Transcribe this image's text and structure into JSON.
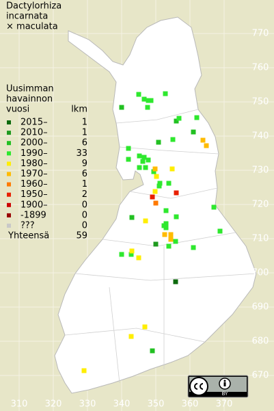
{
  "chart_data": {
    "type": "map",
    "title": [
      "Dactylorhiza",
      "incarnata",
      "× maculata"
    ],
    "legend_title": [
      "Uusimman",
      "havainnon",
      "vuosi"
    ],
    "count_header": "lkm",
    "total_label": "Yhteensä",
    "total": 59,
    "xlim": [
      304.4,
      384.6
    ],
    "ylim": [
      659.6,
      779.8
    ],
    "xticks": [
      310,
      320,
      330,
      340,
      350,
      360,
      370
    ],
    "yticks": [
      670,
      680,
      690,
      700,
      710,
      720,
      730,
      740,
      750,
      760,
      770
    ],
    "grid": true,
    "badge": {
      "by": "BY"
    },
    "series": [
      {
        "name": "2015–",
        "color": "#0d6a0d",
        "count": 1,
        "x": [
          355.8
        ],
        "y": [
          697.4
        ]
      },
      {
        "name": "2010–",
        "color": "#1f9a1f",
        "count": 1,
        "x": [
          350.0
        ],
        "y": [
          708.4
        ]
      },
      {
        "name": "2000–",
        "color": "#22c022",
        "count": 6,
        "x": [
          350.8,
          356.0,
          343.0,
          361.0,
          340.0,
          349.0
        ],
        "y": [
          738.2,
          744.4,
          716.2,
          741.2,
          748.4,
          677.2
        ]
      },
      {
        "name": "1990–",
        "color": "#2ee82e",
        "count": 33,
        "x": [
          345.0,
          352.8,
          346.6,
          347.8,
          348.6,
          347.6,
          356.8,
          362.0,
          355.0,
          342.0,
          345.2,
          346.6,
          342.0,
          346.2,
          347.8,
          345.2,
          347.0,
          349.4,
          351.0,
          353.8,
          367.0,
          353.0,
          356.0,
          353.0,
          353.0,
          368.8,
          355.8,
          361.0,
          340.0,
          342.8,
          353.8,
          352.4,
          351.2
        ],
        "y": [
          752.2,
          752.4,
          750.8,
          750.4,
          750.4,
          748.4,
          745.2,
          745.4,
          739.0,
          736.4,
          734.2,
          733.8,
          733.2,
          732.6,
          733.0,
          730.8,
          730.8,
          729.6,
          725.4,
          726.2,
          719.2,
          718.2,
          716.4,
          714.4,
          713.2,
          712.2,
          709.2,
          707.4,
          705.4,
          705.4,
          707.8,
          713.8,
          726.2
        ]
      },
      {
        "name": "1980–",
        "color": "#ffee00",
        "count": 9,
        "x": [
          354.8,
          350.2,
          349.8,
          347.0,
          343.0,
          345.0,
          342.8,
          346.8,
          329.0
        ],
        "y": [
          730.4,
          728.2,
          723.8,
          715.2,
          706.4,
          704.4,
          681.4,
          684.2,
          671.4
        ]
      },
      {
        "name": "1970–",
        "color": "#ffbb00",
        "count": 6,
        "x": [
          364.8,
          363.8,
          349.8,
          352.6,
          354.4,
          354.4
        ],
        "y": [
          737.2,
          738.8,
          730.4,
          711.2,
          711.2,
          709.8
        ]
      },
      {
        "name": "1960–",
        "color": "#ff7a00",
        "count": 1,
        "x": [
          350.0
        ],
        "y": [
          720.4
        ]
      },
      {
        "name": "1950–",
        "color": "#e82000",
        "count": 2,
        "x": [
          349.0,
          356.0
        ],
        "y": [
          722.2,
          723.4
        ]
      },
      {
        "name": "1900–",
        "color": "#cc0000",
        "count": 0,
        "x": [],
        "y": []
      },
      {
        "name": "-1899",
        "color": "#990000",
        "count": 0,
        "x": [],
        "y": []
      },
      {
        "name": "???",
        "color": "#c8c8c8",
        "count": 0,
        "x": [],
        "y": []
      }
    ]
  }
}
